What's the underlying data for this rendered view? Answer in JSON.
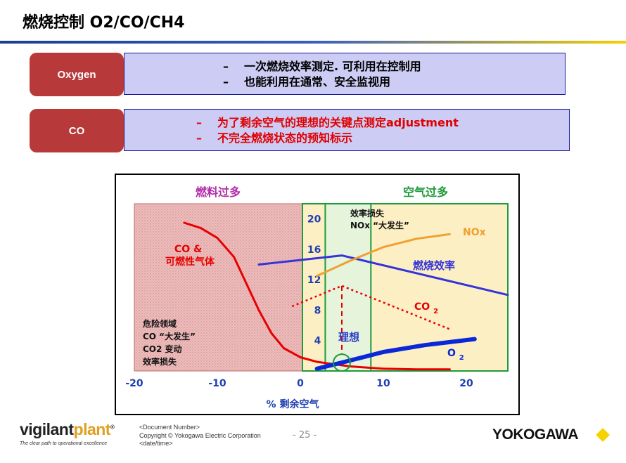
{
  "title": "燃烧控制 O2/CO/CH4",
  "rows": [
    {
      "tag": "Oxygen",
      "color": "#000000",
      "bullets": [
        "一次燃烧效率测定. 可利用在控制用",
        "也能利用在通常、安全监视用"
      ]
    },
    {
      "tag": "CO",
      "color": "#e00000",
      "bullets": [
        "为了剩余空气的理想的关键点测定adjustment",
        "不完全燃烧状态的预知标示"
      ]
    }
  ],
  "dash": "–",
  "chart_data": {
    "type": "line",
    "region_left_label": "燃料过多",
    "region_right_label": "空气过多",
    "xlabel": "% 剩余空气",
    "x_ticks": [
      -20,
      -10,
      0,
      10,
      20
    ],
    "y_ticks": [
      4,
      8,
      12,
      16,
      20
    ],
    "xlim": [
      -20,
      25
    ],
    "ylim": [
      0,
      22
    ],
    "series": [
      {
        "name": "CO & 可燃性气体",
        "label_lines": [
          "CO &",
          "可燃性气体"
        ],
        "color": "#e80000",
        "style": "solid",
        "points": [
          [
            -14,
            19.5
          ],
          [
            -12,
            18.8
          ],
          [
            -10,
            17.5
          ],
          [
            -8,
            15
          ],
          [
            -6.5,
            11.5
          ],
          [
            -5,
            8
          ],
          [
            -3.5,
            5
          ],
          [
            -2,
            3
          ],
          [
            0,
            1.8
          ],
          [
            2,
            1.2
          ],
          [
            4,
            0.9
          ],
          [
            6,
            0.6
          ],
          [
            10,
            0.3
          ],
          [
            14,
            0.2
          ],
          [
            18,
            0.2
          ]
        ]
      },
      {
        "name": "燃烧效率",
        "label_lines": [
          "燃烧效率"
        ],
        "color": "#3434d8",
        "style": "solid",
        "points": [
          [
            -5,
            14
          ],
          [
            5,
            15.2
          ],
          [
            25,
            10
          ]
        ]
      },
      {
        "name": "NOx",
        "label_lines": [
          "NOx"
        ],
        "color": "#f0a030",
        "style": "solid",
        "points": [
          [
            2,
            12.5
          ],
          [
            6,
            14.5
          ],
          [
            10,
            16.3
          ],
          [
            14,
            17.4
          ],
          [
            18,
            18
          ]
        ]
      },
      {
        "name": "CO2",
        "label_lines": [
          "CO2"
        ],
        "color": "#e80000",
        "style": "dotted",
        "points": [
          [
            -1,
            8.5
          ],
          [
            5,
            11.2
          ],
          [
            18,
            5.5
          ]
        ]
      },
      {
        "name": "O2",
        "label_lines": [
          "O2"
        ],
        "color": "#0a28d8",
        "style": "thick",
        "points": [
          [
            2,
            0.3
          ],
          [
            5,
            1.1
          ],
          [
            10,
            2.5
          ],
          [
            15,
            3.4
          ],
          [
            21,
            4.2
          ]
        ]
      }
    ],
    "annotations": {
      "danger": [
        "危险领域",
        "CO “大发生”",
        "CO2 变动",
        "效率损失"
      ],
      "loss": [
        "效率损失",
        "NOx “大发生”"
      ],
      "ideal": "理想"
    },
    "ideal_x": 5,
    "ideal_band_x": [
      3,
      8.5
    ],
    "ideal_point_y": 1.1
  },
  "footer": {
    "brand_main": "vigilant",
    "brand_accent": "plant",
    "brand_mark": "®",
    "tagline": "The clear path to operational excellence",
    "doc_lines": [
      "<Document  Number>",
      "Copyright © Yokogawa Electric Corporation",
      "<date/time>"
    ],
    "page": "- 25 -",
    "company": "YOKOGAWA"
  }
}
